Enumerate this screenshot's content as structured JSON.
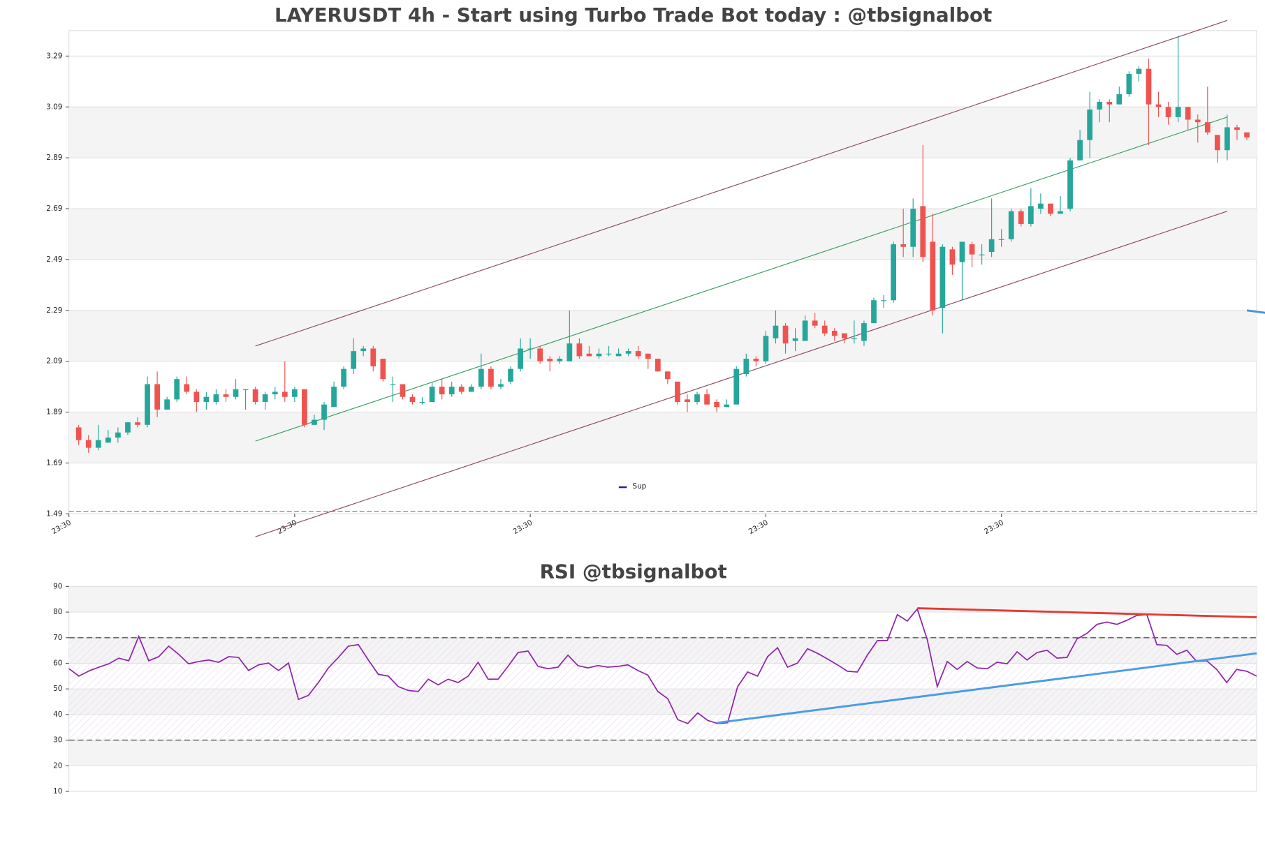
{
  "chart_data": [
    {
      "type": "candlestick",
      "title": "LAYERUSDT 4h - Start using Turbo Trade Bot today : @tbsignalbot",
      "open": [
        1.83,
        1.78,
        1.75,
        1.77,
        1.79,
        1.81,
        1.85,
        1.84,
        2.0,
        1.9,
        1.94,
        2.0,
        1.97,
        1.93,
        1.93,
        1.96,
        1.95,
        1.98,
        1.98,
        1.93,
        1.96,
        1.97,
        1.95,
        1.98,
        1.84,
        1.86,
        1.91,
        1.99,
        2.06,
        2.13,
        2.14,
        2.1,
        2.0,
        2.0,
        1.95,
        1.93,
        1.93,
        1.99,
        1.96,
        1.99,
        1.97,
        1.99,
        2.06,
        1.99,
        2.01,
        2.06,
        2.14,
        2.14,
        2.1,
        2.09,
        2.09,
        2.16,
        2.12,
        2.11,
        2.12,
        2.11,
        2.12,
        2.13,
        2.12,
        2.1,
        2.05,
        2.01,
        1.94,
        1.93,
        1.96,
        1.93,
        1.91,
        1.92,
        2.04,
        2.1,
        2.09,
        2.18,
        2.23,
        2.17,
        2.17,
        2.25,
        2.23,
        2.21,
        2.2,
        2.18,
        2.17,
        2.24,
        2.33,
        2.33,
        2.55,
        2.54,
        2.7,
        2.56,
        2.3,
        2.53,
        2.48,
        2.55,
        2.51,
        2.52,
        2.57,
        2.57,
        2.68,
        2.63,
        2.69,
        2.71,
        2.67,
        2.69,
        2.88,
        2.96,
        3.08,
        3.11,
        3.1,
        3.14,
        3.22,
        3.24,
        3.1,
        3.09,
        3.05,
        3.09,
        3.04,
        3.03,
        2.98,
        2.92,
        3.01,
        2.99
      ],
      "high": [
        1.84,
        1.8,
        1.84,
        1.82,
        1.83,
        1.85,
        1.87,
        2.03,
        2.05,
        1.95,
        2.03,
        2.03,
        1.98,
        1.97,
        1.98,
        1.98,
        2.02,
        1.98,
        1.99,
        1.97,
        1.99,
        2.09,
        1.99,
        1.98,
        1.88,
        1.93,
        2.01,
        2.07,
        2.18,
        2.15,
        2.15,
        2.1,
        2.03,
        2.0,
        1.96,
        1.95,
        2.01,
        2.02,
        2.01,
        2.0,
        2.0,
        2.12,
        2.07,
        2.02,
        2.07,
        2.18,
        2.18,
        2.15,
        2.11,
        2.11,
        2.29,
        2.18,
        2.15,
        2.14,
        2.15,
        2.14,
        2.14,
        2.15,
        2.12,
        2.1,
        2.05,
        2.01,
        1.96,
        1.97,
        1.98,
        1.94,
        1.94,
        2.07,
        2.12,
        2.11,
        2.21,
        2.29,
        2.24,
        2.22,
        2.27,
        2.28,
        2.25,
        2.22,
        2.2,
        2.25,
        2.25,
        2.34,
        2.35,
        2.56,
        2.69,
        2.73,
        2.94,
        2.67,
        2.55,
        2.54,
        2.56,
        2.56,
        2.55,
        2.73,
        2.61,
        2.69,
        2.69,
        2.77,
        2.75,
        2.71,
        2.74,
        2.89,
        3.0,
        3.15,
        3.12,
        3.12,
        3.17,
        3.23,
        3.25,
        3.28,
        3.15,
        3.11,
        3.37,
        3.09,
        3.06,
        3.17,
        2.98,
        3.06,
        3.02,
        2.99
      ],
      "low": [
        1.76,
        1.73,
        1.74,
        1.77,
        1.77,
        1.8,
        1.83,
        1.83,
        1.87,
        1.9,
        1.93,
        1.96,
        1.89,
        1.9,
        1.92,
        1.93,
        1.94,
        1.9,
        1.92,
        1.9,
        1.94,
        1.93,
        1.93,
        1.83,
        1.84,
        1.82,
        1.91,
        1.98,
        2.04,
        2.11,
        2.05,
        2.01,
        1.93,
        1.94,
        1.92,
        1.92,
        1.93,
        1.94,
        1.95,
        1.96,
        1.97,
        1.98,
        1.98,
        1.98,
        2.0,
        2.05,
        2.1,
        2.08,
        2.05,
        2.08,
        2.09,
        2.1,
        2.11,
        2.1,
        2.11,
        2.11,
        2.11,
        2.1,
        2.06,
        2.05,
        2.0,
        1.92,
        1.89,
        1.92,
        1.92,
        1.89,
        1.91,
        1.92,
        2.03,
        2.07,
        2.08,
        2.16,
        2.12,
        2.13,
        2.17,
        2.22,
        2.19,
        2.17,
        2.16,
        2.16,
        2.15,
        2.24,
        2.3,
        2.32,
        2.5,
        2.5,
        2.48,
        2.27,
        2.2,
        2.43,
        2.33,
        2.46,
        2.47,
        2.5,
        2.54,
        2.56,
        2.62,
        2.62,
        2.67,
        2.66,
        2.67,
        2.68,
        2.88,
        2.89,
        3.03,
        3.03,
        3.1,
        3.13,
        3.19,
        2.94,
        3.05,
        3.02,
        3.03,
        3.0,
        2.95,
        2.98,
        2.87,
        2.88,
        2.96,
        2.96
      ],
      "close": [
        1.78,
        1.75,
        1.78,
        1.79,
        1.81,
        1.85,
        1.84,
        2.0,
        1.9,
        1.94,
        2.02,
        1.97,
        1.93,
        1.95,
        1.96,
        1.95,
        1.98,
        1.98,
        1.93,
        1.96,
        1.97,
        1.95,
        1.98,
        1.84,
        1.86,
        1.92,
        1.99,
        2.06,
        2.13,
        2.14,
        2.07,
        2.02,
        2.0,
        1.95,
        1.93,
        1.93,
        1.99,
        1.96,
        1.99,
        1.97,
        1.99,
        2.06,
        1.99,
        2.0,
        2.06,
        2.14,
        2.14,
        2.09,
        2.09,
        2.1,
        2.16,
        2.11,
        2.11,
        2.12,
        2.12,
        2.12,
        2.13,
        2.11,
        2.1,
        2.05,
        2.02,
        1.93,
        1.93,
        1.96,
        1.92,
        1.91,
        1.92,
        2.06,
        2.1,
        2.09,
        2.19,
        2.23,
        2.16,
        2.18,
        2.25,
        2.23,
        2.2,
        2.19,
        2.18,
        2.18,
        2.24,
        2.33,
        2.33,
        2.55,
        2.54,
        2.69,
        2.5,
        2.29,
        2.54,
        2.47,
        2.56,
        2.51,
        2.51,
        2.57,
        2.57,
        2.68,
        2.63,
        2.7,
        2.71,
        2.67,
        2.68,
        2.88,
        2.96,
        3.08,
        3.11,
        3.1,
        3.14,
        3.22,
        3.24,
        3.1,
        3.09,
        3.05,
        3.09,
        3.04,
        3.03,
        2.99,
        2.92,
        3.01,
        3.0,
        2.97
      ],
      "xlim": [
        -1,
        120
      ],
      "xticks": [
        {
          "value": -1,
          "label": "23:30"
        },
        {
          "value": 22,
          "label": "23:30"
        },
        {
          "value": 46,
          "label": "23:30"
        },
        {
          "value": 70,
          "label": "23:30"
        },
        {
          "value": 94,
          "label": "23:30"
        }
      ],
      "ylim": [
        1.49,
        3.39
      ],
      "yticks": [
        1.49,
        1.69,
        1.89,
        2.09,
        2.29,
        2.49,
        2.69,
        2.89,
        3.09,
        3.29
      ],
      "up_color": "#26a69a",
      "down_color": "#ef5350",
      "lines": [
        {
          "x": [
            18,
            117
          ],
          "y": [
            2.15,
            3.43
          ],
          "color": "#8b4a5e"
        },
        {
          "x": [
            18,
            117
          ],
          "y": [
            1.776,
            3.05
          ],
          "color": "#3aa060"
        },
        {
          "x": [
            18,
            117
          ],
          "y": [
            1.4,
            2.68
          ],
          "color": "#8b4a5e"
        },
        {
          "x": [
            119,
            121
          ],
          "y": [
            2.29,
            2.28
          ],
          "color": "#4a90e2"
        }
      ],
      "hlines": [
        {
          "value": 1.5,
          "color": "#5b9bd5"
        }
      ],
      "legend": [
        {
          "name": "Sup",
          "color": "#1a1a9a"
        }
      ]
    },
    {
      "type": "line",
      "title": "RSI @tbsignalbot",
      "values": [
        57.9,
        55,
        57,
        58.5,
        59.8,
        62,
        61,
        70.5,
        61,
        62.6,
        66.7,
        63.5,
        59.8,
        60.7,
        61.3,
        60.4,
        62.6,
        62.3,
        57.2,
        59.4,
        60.1,
        57.2,
        60.1,
        45.9,
        47.5,
        52.5,
        58.2,
        62.3,
        66.7,
        67.3,
        61.3,
        55.7,
        55,
        50.9,
        49.4,
        49,
        53.8,
        51.6,
        53.8,
        52.5,
        55,
        60.4,
        53.8,
        53.8,
        58.8,
        64.2,
        64.8,
        58.8,
        57.9,
        58.5,
        63.2,
        59.1,
        58.2,
        59.1,
        58.5,
        58.8,
        59.4,
        57.2,
        55.4,
        49,
        46.2,
        38,
        36.5,
        40.6,
        37.7,
        36.5,
        36.8,
        50.9,
        56.6,
        55,
        62.6,
        66.1,
        58.5,
        60.1,
        65.7,
        63.9,
        61.7,
        59.4,
        56.9,
        56.6,
        63.2,
        68.9,
        68.9,
        79,
        76.5,
        81.2,
        69.2,
        50.9,
        60.7,
        57.6,
        60.7,
        58.2,
        57.9,
        60.4,
        59.8,
        64.5,
        61.3,
        64.2,
        65.1,
        62,
        62.3,
        69.5,
        71.7,
        75.2,
        76.1,
        75.2,
        76.8,
        78.7,
        79,
        67.3,
        67,
        63.5,
        65.1,
        60.7,
        61,
        57.6,
        52.5,
        57.6,
        56.9,
        55
      ],
      "color": "#8e24aa",
      "xlim": [
        0,
        119
      ],
      "ylim": [
        10,
        90
      ],
      "yticks": [
        10,
        20,
        30,
        40,
        50,
        60,
        70,
        80,
        90
      ],
      "hlines": [
        30,
        70
      ],
      "lines": [
        {
          "x": [
            85,
            119
          ],
          "y": [
            81.5,
            78
          ],
          "color": "#e53935"
        },
        {
          "x": [
            65,
            119
          ],
          "y": [
            36.8,
            63.9
          ],
          "color": "#4a9be8"
        }
      ]
    }
  ]
}
